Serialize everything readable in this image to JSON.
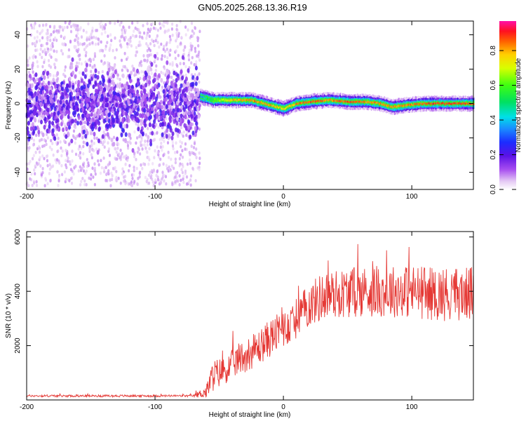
{
  "title": "GN05.2025.268.13.36.R19",
  "colors": {
    "snr_line": "#e53935",
    "axis": "#000000",
    "background": "#ffffff"
  },
  "chart_data": [
    {
      "type": "heatmap",
      "title": "GN05.2025.268.13.36.R19",
      "xlabel": "Height of straight line (km)",
      "ylabel": "Frequency (Hz)",
      "xlim": [
        -200,
        148
      ],
      "ylim": [
        -50,
        48
      ],
      "xticks": [
        -200,
        -100,
        0,
        100
      ],
      "xtick_labels": [
        "-200",
        "-100",
        "0",
        "100"
      ],
      "yticks": [
        -40,
        -20,
        0,
        20,
        40
      ],
      "ytick_labels": [
        "-40",
        "-20",
        "0",
        "20",
        "40"
      ],
      "colorbar": {
        "label": "Normalized spectral amplitude",
        "range": [
          0,
          0.97
        ],
        "ticks": [
          0,
          0.2,
          0.4,
          0.6,
          0.8
        ],
        "tick_labels": [
          "0.0",
          "0.2",
          "0.4",
          "0.6",
          "0.8"
        ],
        "colormap": "rainbow (white-purple-blue-cyan-green-yellow-orange-red-magenta)"
      },
      "noise_region": {
        "x_range": [
          -200,
          -65
        ],
        "freq_spread": 48,
        "amplitude": [
          0.05,
          0.25
        ]
      },
      "carrier_trace": {
        "x": [
          -65,
          -55,
          -40,
          -25,
          -15,
          -5,
          0,
          10,
          20,
          35,
          50,
          65,
          75,
          85,
          95,
          110,
          130,
          148
        ],
        "freq": [
          4,
          2,
          2,
          2,
          0,
          -2,
          -3,
          0,
          1,
          2,
          1,
          1,
          0,
          -2,
          -1,
          0,
          0,
          0
        ],
        "amplitude": [
          0.35,
          0.6,
          0.8,
          0.85,
          0.85,
          0.8,
          0.75,
          0.85,
          0.9,
          0.85,
          0.9,
          0.85,
          0.85,
          0.85,
          0.85,
          0.9,
          0.9,
          0.9
        ]
      }
    },
    {
      "type": "line",
      "xlabel": "Height of straight line (km)",
      "ylabel": "SNR (10 * v/v)",
      "xlim": [
        -200,
        148
      ],
      "ylim": [
        0,
        6200
      ],
      "xticks": [
        -200,
        -100,
        0,
        100
      ],
      "xtick_labels": [
        "-200",
        "-100",
        "0",
        "100"
      ],
      "yticks": [
        2000,
        4000,
        6000
      ],
      "ytick_labels": [
        "2000",
        "4000",
        "6000"
      ],
      "series": [
        {
          "name": "SNR",
          "x": [
            -200,
            -150,
            -100,
            -70,
            -60,
            -55,
            -45,
            -35,
            -20,
            -10,
            0,
            10,
            20,
            30,
            40,
            60,
            80,
            100,
            120,
            148
          ],
          "values": [
            150,
            150,
            150,
            150,
            300,
            900,
            1100,
            1500,
            1900,
            2300,
            2600,
            3000,
            3500,
            3800,
            3900,
            4000,
            4000,
            4000,
            3900,
            3900
          ],
          "noise": [
            40,
            40,
            40,
            40,
            250,
            600,
            500,
            600,
            650,
            700,
            700,
            750,
            800,
            900,
            900,
            950,
            950,
            1000,
            1000,
            1000
          ]
        }
      ]
    }
  ]
}
